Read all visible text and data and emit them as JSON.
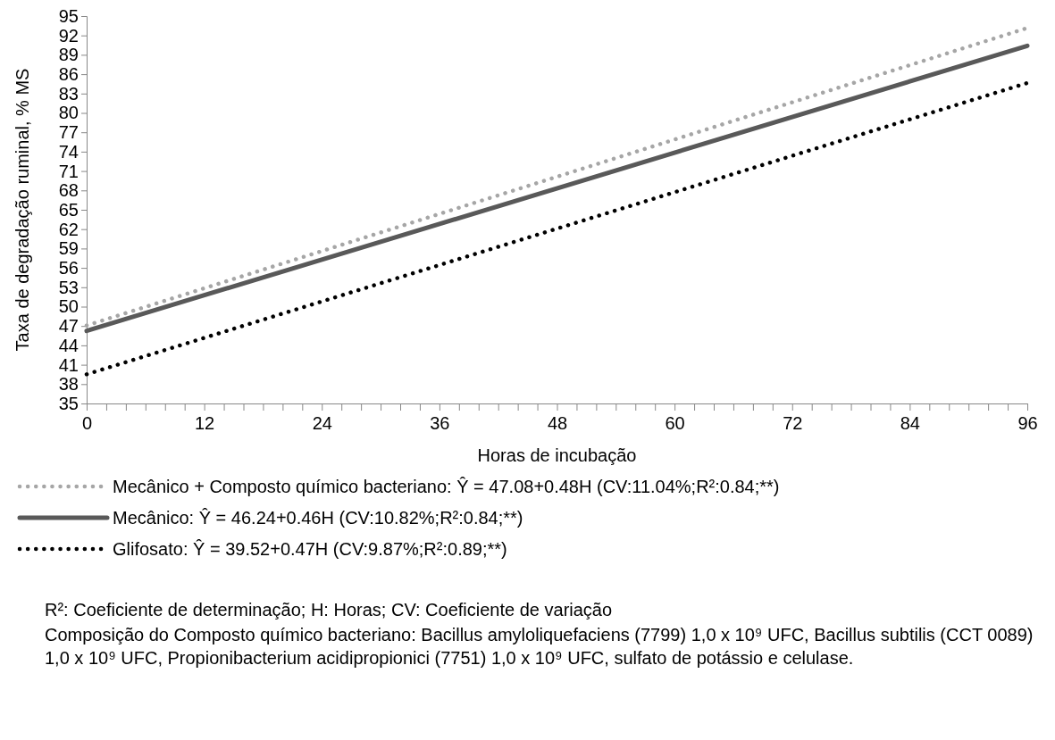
{
  "chart_data": {
    "type": "line",
    "xlabel": "Horas de incubação",
    "ylabel": "Taxa de degradação ruminal, % MS",
    "x": [
      0,
      96
    ],
    "series": [
      {
        "name": "Mecânico + Composto químico bacteriano: Ŷ = 47.08+0.48H (CV:11.04%;R²:0.84;**)",
        "color": "#a6a6a6",
        "line_style": "dotted",
        "values": [
          47.08,
          93.16
        ]
      },
      {
        "name": "Mecânico: Ŷ = 46.24+0.46H (CV:10.82%;R²:0.84;**)",
        "color": "#595959",
        "line_style": "solid",
        "values": [
          46.24,
          90.4
        ]
      },
      {
        "name": "Glifosato: Ŷ = 39.52+0.47H (CV:9.87%;R²:0.89;**)",
        "color": "#000000",
        "line_style": "dotted",
        "values": [
          39.52,
          84.64
        ]
      }
    ],
    "xlim": [
      0,
      96
    ],
    "xticks": [
      0,
      {
        "value": 2,
        "label": null
      },
      {
        "value": 4,
        "label": null
      },
      {
        "value": 6,
        "label": null
      },
      {
        "value": 8,
        "label": null
      },
      {
        "value": 10,
        "label": null
      },
      12,
      {
        "value": 14,
        "label": null
      },
      {
        "value": 16,
        "label": null
      },
      {
        "value": 18,
        "label": null
      },
      {
        "value": 20,
        "label": null
      },
      {
        "value": 22,
        "label": null
      },
      24,
      {
        "value": 26,
        "label": null
      },
      {
        "value": 28,
        "label": null
      },
      {
        "value": 30,
        "label": null
      },
      {
        "value": 32,
        "label": null
      },
      {
        "value": 34,
        "label": null
      },
      36,
      {
        "value": 38,
        "label": null
      },
      {
        "value": 40,
        "label": null
      },
      {
        "value": 42,
        "label": null
      },
      {
        "value": 44,
        "label": null
      },
      {
        "value": 46,
        "label": null
      },
      48,
      {
        "value": 50,
        "label": null
      },
      {
        "value": 52,
        "label": null
      },
      {
        "value": 54,
        "label": null
      },
      {
        "value": 56,
        "label": null
      },
      {
        "value": 58,
        "label": null
      },
      60,
      {
        "value": 62,
        "label": null
      },
      {
        "value": 64,
        "label": null
      },
      {
        "value": 66,
        "label": null
      },
      {
        "value": 68,
        "label": null
      },
      {
        "value": 70,
        "label": null
      },
      72,
      {
        "value": 74,
        "label": null
      },
      {
        "value": 76,
        "label": null
      },
      {
        "value": 78,
        "label": null
      },
      {
        "value": 80,
        "label": null
      },
      {
        "value": 82,
        "label": null
      },
      84,
      {
        "value": 86,
        "label": null
      },
      {
        "value": 88,
        "label": null
      },
      {
        "value": 90,
        "label": null
      },
      {
        "value": 92,
        "label": null
      },
      {
        "value": 94,
        "label": null
      },
      96
    ],
    "ylim": [
      35,
      95
    ],
    "yticks": [
      35,
      38,
      41,
      44,
      47,
      50,
      53,
      56,
      59,
      62,
      65,
      68,
      71,
      74,
      77,
      80,
      83,
      86,
      89,
      92,
      95
    ],
    "grid": false,
    "legend": "bottom",
    "marker": "none",
    "annotations": [
      "R²: Coeficiente de determinação; H: Horas; CV: Coeficiente de variação",
      "Composição do Composto químico bacteriano: Bacillus amyloliquefaciens (7799) 1,0 x 10⁹ UFC, Bacillus subtilis (CCT 0089) 1,0 x 10⁹ UFC, Propionibacterium acidipropionici (7751) 1,0 x 10⁹ UFC, sulfato de potássio e celulase."
    ]
  }
}
